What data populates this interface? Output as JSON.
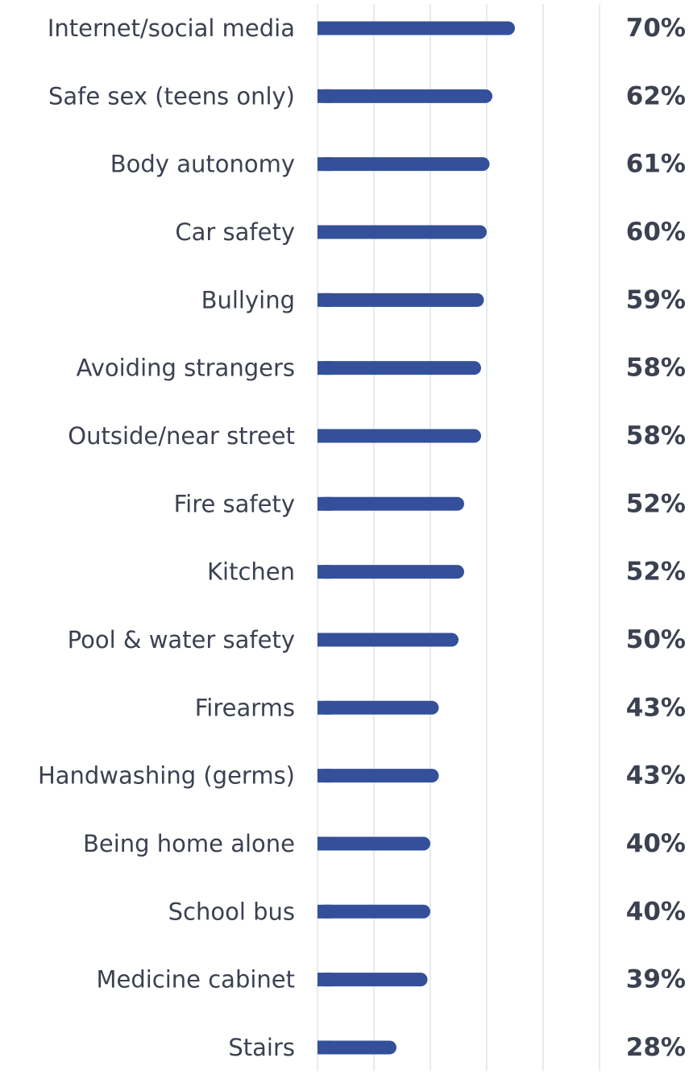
{
  "chart_data": {
    "type": "bar",
    "orientation": "horizontal",
    "categories": [
      "Internet/social media",
      "Safe sex (teens only)",
      "Body autonomy",
      "Car safety",
      "Bullying",
      "Avoiding strangers",
      "Outside/near street",
      "Fire safety",
      "Kitchen",
      "Pool & water safety",
      "Firearms",
      "Handwashing (germs)",
      "Being home alone",
      "School bus",
      "Medicine cabinet",
      "Stairs"
    ],
    "values": [
      70,
      62,
      61,
      60,
      59,
      58,
      58,
      52,
      52,
      50,
      43,
      43,
      40,
      40,
      39,
      28
    ],
    "value_labels": [
      "70%",
      "62%",
      "61%",
      "60%",
      "59%",
      "58%",
      "58%",
      "52%",
      "52%",
      "50%",
      "43%",
      "43%",
      "40%",
      "40%",
      "39%",
      "28%"
    ],
    "xlim": [
      0,
      100
    ],
    "grid": true,
    "bar_color": "#34509a",
    "grid_color": "#e6ecf1",
    "text_color": "#3b4150"
  }
}
